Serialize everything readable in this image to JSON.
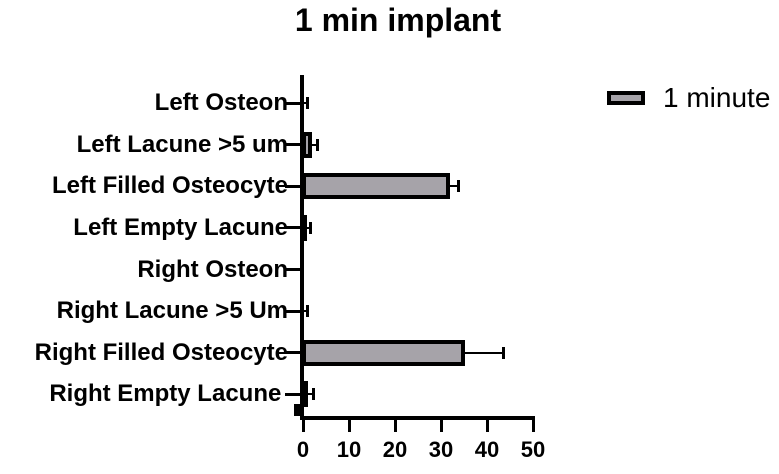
{
  "page": {
    "background": "#ffffff"
  },
  "chart_data": {
    "type": "bar",
    "orientation": "horizontal",
    "title": "1 min implant",
    "categories": [
      "Left Osteon",
      "Left Lacune >5 um",
      "Left Filled Osteocyte",
      "Left Empty Lacune",
      "Right Osteon",
      "Right Lacune >5 Um",
      "Right Filled Osteocyte",
      "Right Empty Lacune "
    ],
    "series": [
      {
        "name": "1 minute",
        "values": [
          0.3,
          2.2,
          32.2,
          1.1,
          0,
          0.5,
          35.4,
          1.3
        ],
        "errors_plus": [
          1.0,
          1.1,
          1.9,
          0.8,
          0,
          0.8,
          8.5,
          1.2
        ]
      }
    ],
    "xlabel": "",
    "ylabel": "",
    "xlim": [
      0,
      50
    ],
    "xticks": [
      0,
      10,
      20,
      30,
      40,
      50
    ],
    "xtick_labels": [
      "0",
      "10",
      "20",
      "30",
      "40",
      "50"
    ],
    "grid": false,
    "error_bars": true,
    "legend": {
      "position": "top-right",
      "entries": [
        {
          "label": "1 minute",
          "swatch_fill": "#a6a3a9",
          "swatch_border": "#000000"
        }
      ]
    },
    "colors": {
      "bar_fill": "#a6a3a9",
      "bar_border": "#000000",
      "axis": "#000000",
      "text": "#000000"
    }
  }
}
